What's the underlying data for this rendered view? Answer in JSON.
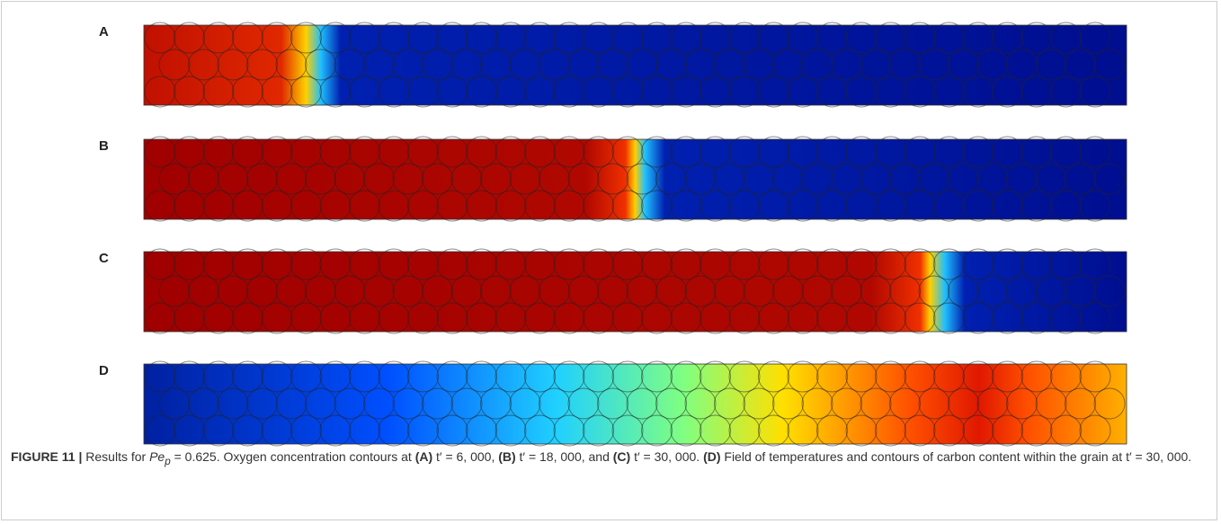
{
  "panels": [
    {
      "label": "A"
    },
    {
      "label": "B"
    },
    {
      "label": "C"
    },
    {
      "label": "D"
    }
  ],
  "caption": {
    "runs": [
      "FIGURE 11 |",
      " Results for ",
      "Pe",
      "p",
      " = 0.625. Oxygen concentration contours at ",
      "(A)",
      " t′ = 6, 000, ",
      "(B)",
      " t′ = 18, 000, and ",
      "(C)",
      " t′ = 30, 000. ",
      "(D)",
      " Field of temperatures and contours of carbon content within the grain at t′ = 30, 000."
    ]
  }
}
